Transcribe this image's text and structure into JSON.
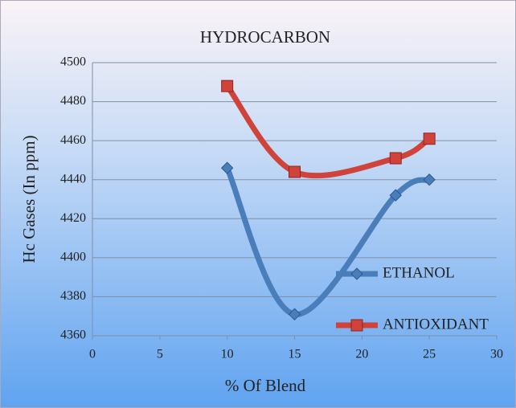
{
  "chart_data": {
    "type": "line",
    "title": "HYDROCARBON",
    "x_label": "% Of Blend",
    "y_label": "Hc Gases (In ppm)",
    "x": [
      10,
      15,
      22.5,
      25
    ],
    "series": [
      {
        "name": "ETHANOL",
        "color": "#4a7ebb",
        "marker": "diamond",
        "values": [
          4446,
          4371,
          4432,
          4440
        ]
      },
      {
        "name": "ANTIOXIDANT",
        "color": "#d0433a",
        "marker": "square",
        "values": [
          4488,
          4444,
          4451,
          4461
        ]
      }
    ],
    "xlim": [
      0,
      30
    ],
    "xticks": [
      0,
      5,
      10,
      15,
      20,
      25,
      30
    ],
    "ylim": [
      4360,
      4500
    ],
    "yticks": [
      4360,
      4380,
      4400,
      4420,
      4440,
      4460,
      4480,
      4500
    ],
    "grid": true,
    "smooth": true
  }
}
